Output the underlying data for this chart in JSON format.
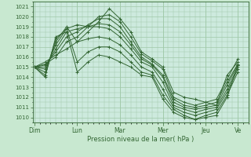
{
  "title": "",
  "xlabel": "Pression niveau de la mer( hPa )",
  "ylabel": "",
  "background_color": "#c8e8d0",
  "plot_bg_color": "#cdeade",
  "line_color": "#336633",
  "grid_color": "#a0c8a8",
  "ylim": [
    1009.5,
    1021.5
  ],
  "yticks": [
    1010,
    1011,
    1012,
    1013,
    1014,
    1015,
    1016,
    1017,
    1018,
    1019,
    1020,
    1021
  ],
  "day_labels": [
    "Dim",
    "Lun",
    "Mar",
    "Mer",
    "Jeu",
    "Ve"
  ],
  "day_positions": [
    0,
    24,
    48,
    72,
    96,
    114
  ],
  "xlim": [
    -1,
    120
  ],
  "lines": [
    [
      0,
      1015.0,
      6,
      1015.5,
      12,
      1016.2,
      18,
      1016.8,
      24,
      1017.5,
      30,
      1018.5,
      36,
      1019.5,
      42,
      1020.8,
      48,
      1019.8,
      54,
      1018.5,
      60,
      1016.5,
      66,
      1015.8,
      72,
      1015.0,
      78,
      1012.5,
      84,
      1012.0,
      90,
      1011.8,
      96,
      1011.5,
      102,
      1011.2,
      108,
      1014.2,
      114,
      1015.5
    ],
    [
      0,
      1015.0,
      6,
      1015.3,
      12,
      1016.0,
      18,
      1017.5,
      24,
      1018.0,
      30,
      1019.0,
      36,
      1020.0,
      42,
      1020.2,
      48,
      1019.5,
      54,
      1018.0,
      60,
      1016.3,
      66,
      1015.6,
      72,
      1014.8,
      78,
      1012.0,
      84,
      1011.5,
      90,
      1011.2,
      96,
      1011.5,
      102,
      1011.8,
      108,
      1013.8,
      114,
      1015.8
    ],
    [
      0,
      1015.0,
      6,
      1015.2,
      12,
      1016.5,
      18,
      1018.0,
      24,
      1018.5,
      30,
      1019.2,
      36,
      1019.8,
      42,
      1019.8,
      48,
      1019.0,
      54,
      1017.5,
      60,
      1016.0,
      66,
      1015.3,
      72,
      1014.2,
      78,
      1011.8,
      84,
      1011.2,
      90,
      1011.0,
      96,
      1011.2,
      102,
      1011.5,
      108,
      1013.5,
      114,
      1015.3
    ],
    [
      0,
      1015.0,
      6,
      1015.0,
      12,
      1016.8,
      18,
      1018.5,
      24,
      1018.8,
      30,
      1019.0,
      36,
      1019.3,
      42,
      1019.2,
      48,
      1018.5,
      54,
      1017.2,
      60,
      1015.8,
      66,
      1015.2,
      72,
      1014.0,
      78,
      1011.5,
      84,
      1011.0,
      90,
      1010.8,
      96,
      1011.0,
      102,
      1011.2,
      108,
      1013.2,
      114,
      1015.2
    ],
    [
      0,
      1015.0,
      6,
      1014.8,
      12,
      1017.2,
      18,
      1018.8,
      24,
      1019.2,
      30,
      1019.0,
      36,
      1019.0,
      42,
      1018.8,
      48,
      1018.0,
      54,
      1016.8,
      60,
      1015.5,
      66,
      1015.0,
      72,
      1013.5,
      78,
      1011.2,
      84,
      1010.8,
      90,
      1010.5,
      96,
      1010.8,
      102,
      1011.0,
      108,
      1012.8,
      114,
      1015.0
    ],
    [
      0,
      1015.0,
      6,
      1014.5,
      12,
      1017.5,
      18,
      1019.0,
      24,
      1017.5,
      30,
      1017.8,
      36,
      1018.0,
      42,
      1017.8,
      48,
      1017.2,
      54,
      1016.2,
      60,
      1015.0,
      66,
      1014.5,
      72,
      1012.8,
      78,
      1011.0,
      84,
      1010.5,
      90,
      1010.2,
      96,
      1010.5,
      102,
      1010.8,
      108,
      1012.5,
      114,
      1014.8
    ],
    [
      0,
      1015.0,
      6,
      1014.2,
      12,
      1017.8,
      18,
      1018.8,
      24,
      1015.5,
      30,
      1016.5,
      36,
      1017.0,
      42,
      1017.0,
      48,
      1016.5,
      54,
      1015.5,
      60,
      1014.5,
      66,
      1014.2,
      72,
      1012.2,
      78,
      1010.8,
      84,
      1010.2,
      90,
      1009.8,
      96,
      1010.2,
      102,
      1010.5,
      108,
      1012.2,
      114,
      1014.5
    ],
    [
      0,
      1015.0,
      6,
      1014.0,
      12,
      1018.0,
      18,
      1018.5,
      24,
      1014.5,
      30,
      1015.5,
      36,
      1016.2,
      42,
      1016.0,
      48,
      1015.5,
      54,
      1015.0,
      60,
      1014.2,
      66,
      1014.0,
      72,
      1011.8,
      78,
      1010.5,
      84,
      1010.0,
      90,
      1009.8,
      96,
      1010.0,
      102,
      1010.2,
      108,
      1012.0,
      114,
      1015.2
    ]
  ]
}
